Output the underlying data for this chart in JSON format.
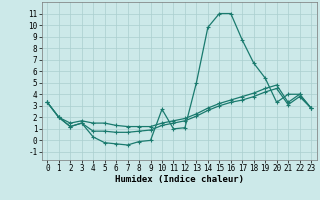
{
  "xlabel": "Humidex (Indice chaleur)",
  "background_color": "#cce9e9",
  "grid_color": "#aacfcf",
  "line_color": "#1a7a6e",
  "xlim": [
    -0.5,
    23.5
  ],
  "ylim": [
    -1.7,
    12.0
  ],
  "xticks": [
    0,
    1,
    2,
    3,
    4,
    5,
    6,
    7,
    8,
    9,
    10,
    11,
    12,
    13,
    14,
    15,
    16,
    17,
    18,
    19,
    20,
    21,
    22,
    23
  ],
  "yticks": [
    -1,
    0,
    1,
    2,
    3,
    4,
    5,
    6,
    7,
    8,
    9,
    10,
    11
  ],
  "series1_x": [
    0,
    1,
    2,
    3,
    4,
    5,
    6,
    7,
    8,
    9,
    10,
    11,
    12,
    13,
    14,
    15,
    16,
    17,
    18,
    19,
    20,
    21,
    22,
    23
  ],
  "series1_y": [
    3.3,
    2.0,
    1.2,
    1.5,
    0.3,
    -0.2,
    -0.3,
    -0.4,
    -0.1,
    0.0,
    2.7,
    1.0,
    1.1,
    5.0,
    9.8,
    11.0,
    11.0,
    8.7,
    6.7,
    5.4,
    3.3,
    4.0,
    4.0,
    2.8
  ],
  "series2_x": [
    0,
    1,
    2,
    3,
    4,
    5,
    6,
    7,
    8,
    9,
    10,
    11,
    12,
    13,
    14,
    15,
    16,
    17,
    18,
    19,
    20,
    21,
    22,
    23
  ],
  "series2_y": [
    3.3,
    2.0,
    1.5,
    1.7,
    1.5,
    1.5,
    1.3,
    1.2,
    1.2,
    1.2,
    1.5,
    1.7,
    1.9,
    2.3,
    2.8,
    3.2,
    3.5,
    3.8,
    4.1,
    4.5,
    4.8,
    3.3,
    4.0,
    2.8
  ],
  "series3_x": [
    0,
    1,
    2,
    3,
    4,
    5,
    6,
    7,
    8,
    9,
    10,
    11,
    12,
    13,
    14,
    15,
    16,
    17,
    18,
    19,
    20,
    21,
    22,
    23
  ],
  "series3_y": [
    3.3,
    2.0,
    1.2,
    1.5,
    0.8,
    0.8,
    0.7,
    0.7,
    0.8,
    0.9,
    1.3,
    1.5,
    1.7,
    2.1,
    2.6,
    3.0,
    3.3,
    3.5,
    3.8,
    4.2,
    4.5,
    3.1,
    3.8,
    2.8
  ],
  "tick_fontsize": 5.5,
  "xlabel_fontsize": 6.5,
  "marker_size": 3.0,
  "linewidth": 0.9
}
